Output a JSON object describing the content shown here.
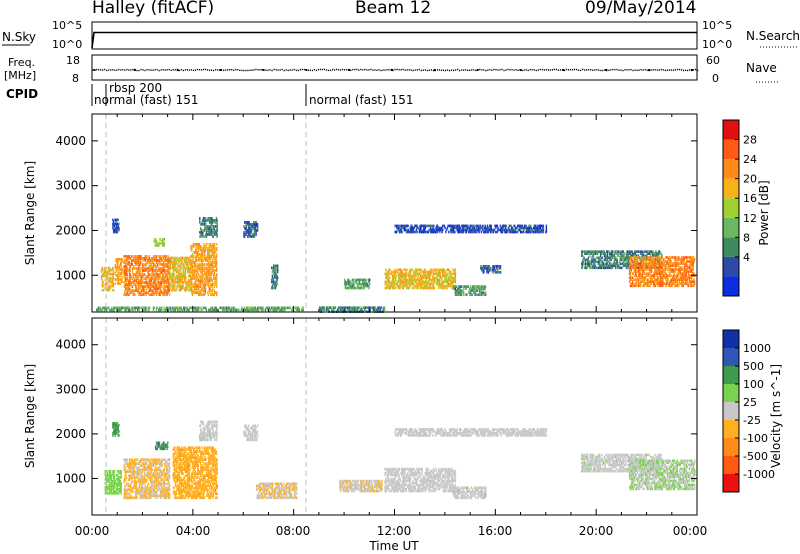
{
  "header": {
    "station": "Halley (fitACF)",
    "beam": "Beam 12",
    "date": "09/May/2014"
  },
  "noise_panel": {
    "left_label": "N.Sky",
    "left_ticks": [
      "10^5",
      "10^0"
    ],
    "right_ticks": [
      "10^5",
      "10^0"
    ],
    "right_label": "N.Search"
  },
  "freq_panel": {
    "left_label_top": "Freq.",
    "left_label_bottom": "[MHz]",
    "left_ticks": [
      "18",
      "8"
    ],
    "right_ticks": [
      "60",
      "0"
    ],
    "right_label": "Nave"
  },
  "cpid": {
    "label": "CPID",
    "segments": [
      {
        "start": "00:00",
        "text": "normal (fast) 151"
      },
      {
        "start": "00:40",
        "text": "rbsp 200"
      },
      {
        "start": "08:30",
        "text": "normal (fast) 151"
      }
    ]
  },
  "xaxis": {
    "label": "Time UT",
    "ticks": [
      "00:00",
      "04:00",
      "08:00",
      "12:00",
      "16:00",
      "20:00",
      "00:00"
    ]
  },
  "colors": {
    "power_scale": [
      "#0a2ee0",
      "#2d4aa8",
      "#3f8a5e",
      "#6cb85e",
      "#9fd12f",
      "#f7b21a",
      "#ff8a1a",
      "#ff5a18",
      "#e01010"
    ],
    "velocity_scale": [
      "#ee1010",
      "#ff5a10",
      "#ff8c1a",
      "#ffb020",
      "#c8c8c8",
      "#7ad24e",
      "#3f9a4e",
      "#2f57b8",
      "#1430a8"
    ]
  },
  "chart_data": [
    {
      "type": "line",
      "title": "N.Sky / N.Search",
      "x_range_hours": [
        0,
        24
      ],
      "y_scale": "log",
      "y_ticks": [
        "10^0",
        "10^5"
      ],
      "series": [
        {
          "x": [
            0.0,
            0.08,
            0.5,
            2,
            4,
            6,
            8,
            10,
            12,
            14,
            16,
            18,
            20,
            22,
            24
          ],
          "values": [
            1.0,
            12000,
            12000,
            12000,
            12000,
            12000,
            12000,
            12000,
            12000,
            12000,
            12000,
            12000,
            12000,
            12000,
            12000
          ]
        }
      ]
    },
    {
      "type": "scatter",
      "title": "Freq. [MHz] / Nave",
      "x_range_hours": [
        0,
        24
      ],
      "ylim": [
        8,
        18
      ],
      "y2lim": [
        0,
        60
      ],
      "series": [
        {
          "values": [
            12,
            12,
            12,
            12,
            12,
            12,
            12,
            12,
            12,
            12,
            12,
            12,
            12,
            12,
            12
          ],
          "x": [
            0.1,
            1.7,
            3.4,
            5.1,
            6.8,
            8.5,
            10.2,
            11.9,
            13.6,
            15.3,
            17.0,
            18.7,
            20.4,
            22.1,
            23.8
          ]
        }
      ]
    },
    {
      "type": "heatmap",
      "x_range_hours": [
        0,
        24
      ],
      "ylabel": "Slant Range [km]",
      "ylim": [
        180,
        4600
      ],
      "y_ticks": [
        1000,
        2000,
        3000,
        4000
      ],
      "colorbar": {
        "label": "Power [dB]",
        "ticks": [
          4,
          8,
          12,
          16,
          20,
          24,
          28
        ],
        "range": [
          0,
          30
        ]
      },
      "regions": [
        {
          "t": [
            0.35,
            0.85
          ],
          "r": [
            650,
            1150
          ],
          "level": 18
        },
        {
          "t": [
            0.9,
            1.2
          ],
          "r": [
            800,
            1350
          ],
          "level": 20
        },
        {
          "t": [
            1.25,
            3.05
          ],
          "r": [
            550,
            1450
          ],
          "level": 22
        },
        {
          "t": [
            2.45,
            2.85
          ],
          "r": [
            1650,
            1800
          ],
          "level": 14
        },
        {
          "t": [
            3.05,
            3.9
          ],
          "r": [
            650,
            1400
          ],
          "level": 18
        },
        {
          "t": [
            3.9,
            4.95
          ],
          "r": [
            550,
            1700
          ],
          "level": 20
        },
        {
          "t": [
            4.25,
            4.95
          ],
          "r": [
            1850,
            2300
          ],
          "level": 8
        },
        {
          "t": [
            0.8,
            1.05
          ],
          "r": [
            1950,
            2250
          ],
          "level": 4
        },
        {
          "t": [
            6.0,
            6.55
          ],
          "r": [
            1850,
            2200
          ],
          "level": 6
        },
        {
          "t": [
            7.1,
            7.35
          ],
          "r": [
            700,
            1200
          ],
          "level": 8
        },
        {
          "t": [
            0.1,
            8.4
          ],
          "r": [
            210,
            290
          ],
          "level": 10
        },
        {
          "t": [
            9.0,
            11.6
          ],
          "r": [
            170,
            300
          ],
          "level": 8
        },
        {
          "t": [
            10.0,
            11.0
          ],
          "r": [
            700,
            900
          ],
          "level": 10
        },
        {
          "t": [
            11.6,
            14.4
          ],
          "r": [
            700,
            1150
          ],
          "level": 18
        },
        {
          "t": [
            14.3,
            15.6
          ],
          "r": [
            550,
            750
          ],
          "level": 10
        },
        {
          "t": [
            15.4,
            16.2
          ],
          "r": [
            1050,
            1200
          ],
          "level": 6
        },
        {
          "t": [
            12.0,
            18.0
          ],
          "r": [
            1950,
            2100
          ],
          "level": 4
        },
        {
          "t": [
            19.4,
            22.6
          ],
          "r": [
            1150,
            1550
          ],
          "level": 8
        },
        {
          "t": [
            21.3,
            23.9
          ],
          "r": [
            750,
            1400
          ],
          "level": 22
        }
      ]
    },
    {
      "type": "heatmap",
      "x_range_hours": [
        0,
        24
      ],
      "ylabel": "Slant Range [km]",
      "ylim": [
        180,
        4600
      ],
      "y_ticks": [
        1000,
        2000,
        3000,
        4000
      ],
      "colorbar": {
        "label": "Velocity [m s^-1]",
        "ticks": [
          "1000",
          "500",
          "100",
          "25",
          "-25",
          "-100",
          "-500",
          "-1000"
        ],
        "range": [
          -1500,
          1500
        ]
      },
      "regions": [
        {
          "t": [
            0.5,
            1.15
          ],
          "r": [
            650,
            1150
          ],
          "level": 300
        },
        {
          "t": [
            1.25,
            3.05
          ],
          "r": [
            550,
            1450
          ],
          "level": -200
        },
        {
          "t": [
            2.5,
            3.0
          ],
          "r": [
            1650,
            1800
          ],
          "level": 800
        },
        {
          "t": [
            3.2,
            4.95
          ],
          "r": [
            550,
            1700
          ],
          "level": -400
        },
        {
          "t": [
            4.25,
            4.95
          ],
          "r": [
            1850,
            2300
          ],
          "level": 60
        },
        {
          "t": [
            0.8,
            1.05
          ],
          "r": [
            1950,
            2250
          ],
          "level": 600
        },
        {
          "t": [
            6.0,
            6.55
          ],
          "r": [
            1850,
            2200
          ],
          "level": 40
        },
        {
          "t": [
            6.5,
            8.1
          ],
          "r": [
            550,
            900
          ],
          "level": -150
        },
        {
          "t": [
            9.8,
            11.5
          ],
          "r": [
            700,
            950
          ],
          "level": -120
        },
        {
          "t": [
            11.6,
            14.4
          ],
          "r": [
            700,
            1200
          ],
          "level": 0
        },
        {
          "t": [
            14.3,
            15.6
          ],
          "r": [
            550,
            800
          ],
          "level": 60
        },
        {
          "t": [
            12.0,
            18.0
          ],
          "r": [
            1950,
            2100
          ],
          "level": 0
        },
        {
          "t": [
            19.4,
            22.6
          ],
          "r": [
            1150,
            1550
          ],
          "level": 60
        },
        {
          "t": [
            21.3,
            23.9
          ],
          "r": [
            750,
            1400
          ],
          "level": 150
        }
      ]
    }
  ]
}
